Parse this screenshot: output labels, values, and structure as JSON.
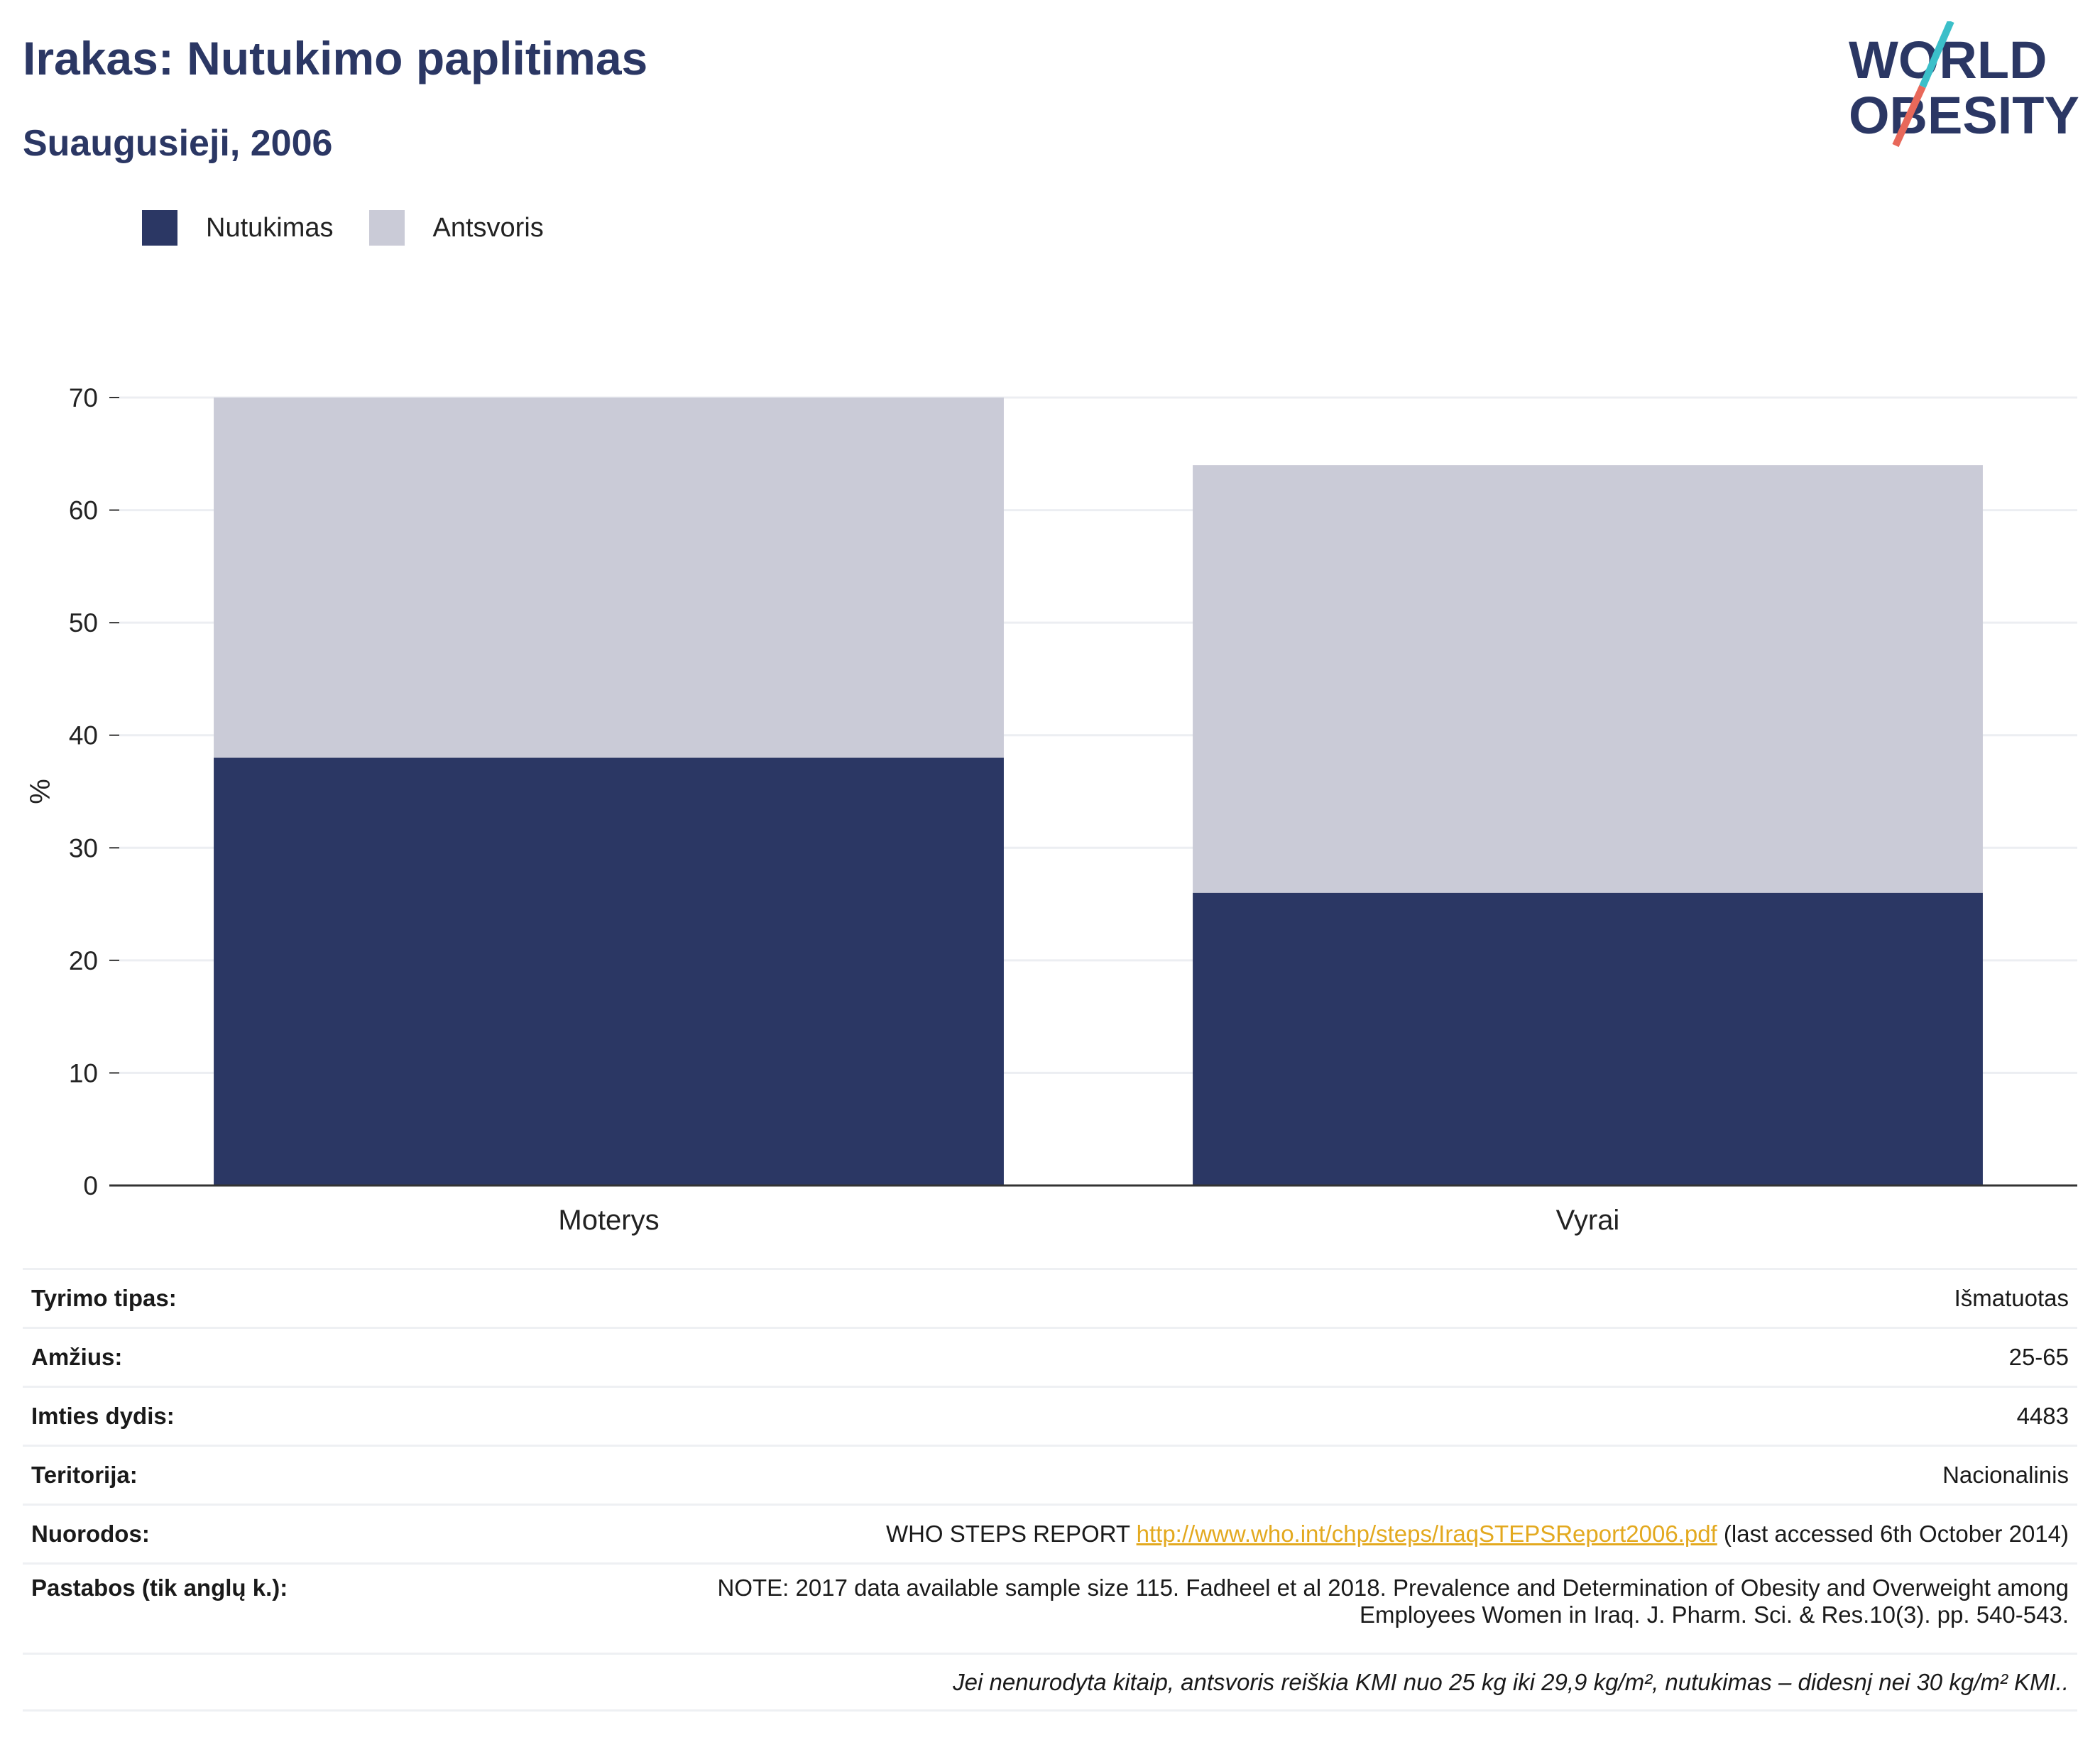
{
  "header": {
    "title": "Irakas: Nutukimo paplitimas",
    "subtitle": "Suaugusieji, 2006"
  },
  "logo": {
    "line1": "WORLD",
    "line2": "OBESITY",
    "colors": {
      "text": "#2b3764",
      "slash_top": "#3bbfc9",
      "slash_bottom": "#e8685a"
    }
  },
  "legend": [
    {
      "label": "Nutukimas",
      "color": "#2b3764"
    },
    {
      "label": "Antsvoris",
      "color": "#cacbd7"
    }
  ],
  "chart_data": {
    "type": "bar",
    "stacked": true,
    "categories": [
      "Moterys",
      "Vyrai"
    ],
    "series": [
      {
        "name": "Nutukimas",
        "values": [
          38,
          26
        ],
        "color": "#2b3764"
      },
      {
        "name": "Antsvoris",
        "values": [
          32,
          38
        ],
        "color": "#cacbd7"
      }
    ],
    "ylabel": "%",
    "ylim": [
      0,
      70
    ],
    "yticks": [
      0,
      10,
      20,
      30,
      40,
      50,
      60,
      70
    ],
    "grid": true,
    "legend_position": "top-left"
  },
  "info": {
    "survey_type": {
      "label": "Tyrimo tipas:",
      "value": "Išmatuotas"
    },
    "age": {
      "label": "Amžius:",
      "value": "25-65"
    },
    "sample_size": {
      "label": "Imties dydis:",
      "value": "4483"
    },
    "territory": {
      "label": "Teritorija:",
      "value": "Nacionalinis"
    },
    "references": {
      "label": "Nuorodos:",
      "prefix": "WHO STEPS REPORT ",
      "link": "http://www.who.int/chp/steps/IraqSTEPSReport2006.pdf",
      "suffix": " (last accessed 6th October 2014)"
    },
    "notes": {
      "label": "Pastabos (tik anglų k.):",
      "line1": "NOTE: 2017 data available sample size 115. Fadheel et al 2018. Prevalence and Determination of Obesity and Overweight among",
      "line2": "Employees Women in Iraq. J. Pharm. Sci. & Res.10(3). pp. 540-543."
    },
    "footnote": "Jei nenurodyta kitaip, antsvoris reiškia KMI nuo 25 kg iki 29,9 kg/m², nutukimas – didesnį nei 30 kg/m² KMI.."
  }
}
